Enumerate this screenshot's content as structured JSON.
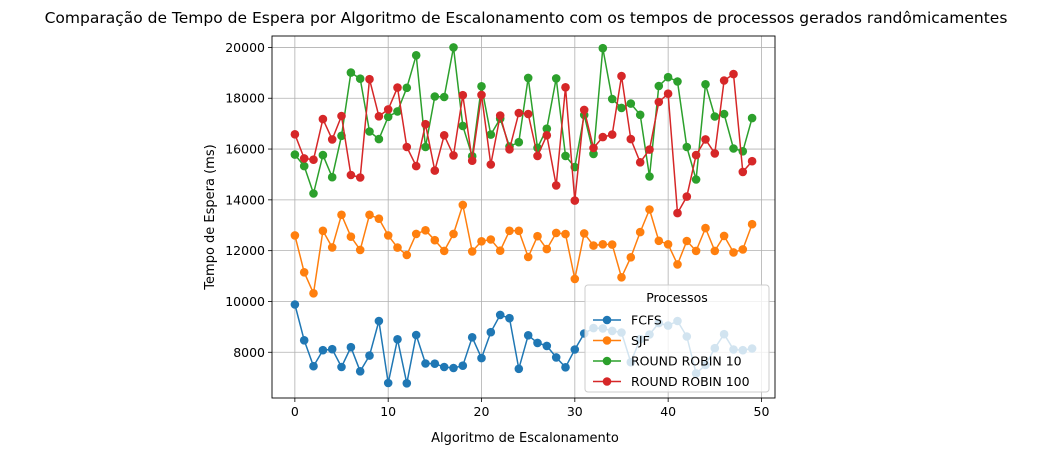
{
  "chart_data": {
    "type": "line",
    "title": "Comparação de Tempo de Espera por Algoritmo de Escalonamento com os tempos de processos gerados randômicamentes",
    "xlabel": "Algoritmo de Escalonamento",
    "ylabel": "Tempo de Espera (ms)",
    "xlim": [
      -2.45,
      51.45
    ],
    "ylim": [
      6200,
      20450
    ],
    "xticks": [
      0,
      10,
      20,
      30,
      40,
      50
    ],
    "yticks": [
      8000,
      10000,
      12000,
      14000,
      16000,
      18000,
      20000
    ],
    "grid": true,
    "legend": {
      "title": "Processos",
      "placement": "lower-right"
    },
    "x": [
      0,
      1,
      2,
      3,
      4,
      5,
      6,
      7,
      8,
      9,
      10,
      11,
      12,
      13,
      14,
      15,
      16,
      17,
      18,
      19,
      20,
      21,
      22,
      23,
      24,
      25,
      26,
      27,
      28,
      29,
      30,
      31,
      32,
      33,
      34,
      35,
      36,
      37,
      38,
      39,
      40,
      41,
      42,
      43,
      44,
      45,
      46,
      47,
      48,
      49
    ],
    "series": [
      {
        "name": "FCFS",
        "color": "#1f77b4",
        "values": [
          9880,
          8470,
          7450,
          8080,
          8120,
          7420,
          8200,
          7250,
          7870,
          9230,
          6790,
          8510,
          6780,
          8680,
          7560,
          7550,
          7420,
          7380,
          7470,
          8590,
          7770,
          8790,
          9470,
          9340,
          7350,
          8670,
          8370,
          8250,
          7800,
          7410,
          8110,
          8740,
          8950,
          8940,
          8840,
          8780,
          7610,
          8520,
          8700,
          9150,
          9050,
          9230,
          8620,
          7170,
          7500,
          8160,
          8710,
          8110,
          8080,
          8150
        ]
      },
      {
        "name": "SJF",
        "color": "#ff7f0e",
        "values": [
          12600,
          11150,
          10320,
          12780,
          12130,
          13410,
          12550,
          12030,
          13410,
          13260,
          12600,
          12120,
          11830,
          12660,
          12800,
          12410,
          11990,
          12660,
          13800,
          11970,
          12370,
          12440,
          12000,
          12780,
          12780,
          11750,
          12570,
          12060,
          12700,
          12650,
          10890,
          12680,
          12200,
          12250,
          12240,
          10950,
          11740,
          12730,
          13620,
          12390,
          12250,
          11460,
          12380,
          11990,
          12890,
          11990,
          12580,
          11930,
          12050,
          13040
        ]
      },
      {
        "name": "ROUND ROBIN 10",
        "color": "#2ca02c",
        "values": [
          15780,
          15330,
          14250,
          15760,
          14890,
          16520,
          19010,
          18770,
          16690,
          16390,
          17270,
          17480,
          18410,
          19690,
          16080,
          18070,
          18050,
          20000,
          16910,
          15720,
          18470,
          16570,
          17200,
          16100,
          16270,
          18800,
          16050,
          16800,
          18780,
          15730,
          15290,
          17340,
          15810,
          19970,
          17970,
          17620,
          17790,
          17350,
          14920,
          18480,
          18830,
          18660,
          16080,
          14800,
          18550,
          17280,
          17380,
          16020,
          15910,
          17220
        ]
      },
      {
        "name": "ROUND ROBIN 100",
        "color": "#d62728",
        "values": [
          16580,
          15630,
          15580,
          17180,
          16380,
          17300,
          14980,
          14880,
          18750,
          17290,
          17560,
          18420,
          16080,
          15330,
          16980,
          15150,
          16540,
          15750,
          18120,
          15540,
          18130,
          15390,
          17320,
          15990,
          17420,
          17380,
          15730,
          16540,
          14570,
          18430,
          13970,
          17540,
          16040,
          16470,
          16570,
          18870,
          16390,
          15480,
          15980,
          17850,
          18180,
          13480,
          14130,
          15760,
          16380,
          15830,
          18700,
          18950,
          15100,
          15520
        ]
      }
    ]
  }
}
